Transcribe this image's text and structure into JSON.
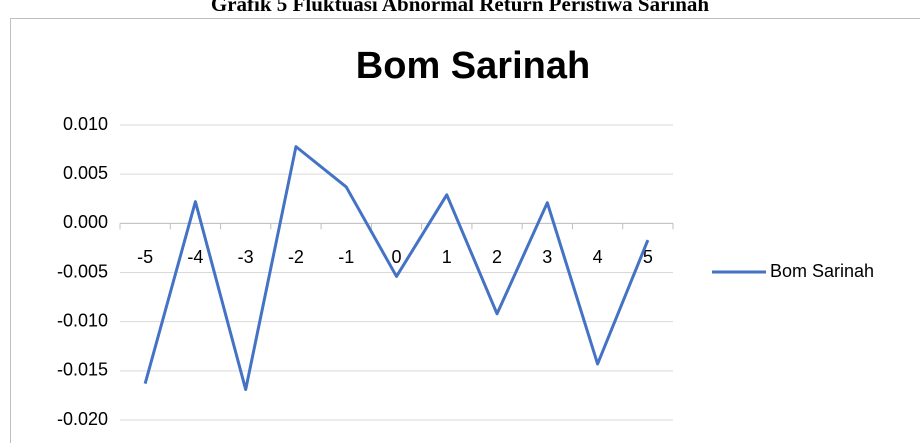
{
  "caption": "Grafik 5 Fluktuasi Abnormal Return Peristiwa Sarinah",
  "chart_data": {
    "type": "line",
    "title": "Bom Sarinah",
    "categories": [
      "-5",
      "-4",
      "-3",
      "-2",
      "-1",
      "0",
      "1",
      "2",
      "3",
      "4",
      "5"
    ],
    "series": [
      {
        "name": "Bom Sarinah",
        "color": "#4472c4",
        "values": [
          -0.0163,
          0.0022,
          -0.0169,
          0.0078,
          0.0037,
          -0.0054,
          0.0029,
          -0.0092,
          0.0021,
          -0.0143,
          -0.0017
        ]
      }
    ],
    "ylim": [
      -0.02,
      0.01
    ],
    "yticks": [
      {
        "value": -0.02,
        "label": "-0.020"
      },
      {
        "value": -0.015,
        "label": "-0.015"
      },
      {
        "value": -0.01,
        "label": "-0.010"
      },
      {
        "value": -0.005,
        "label": "-0.005"
      },
      {
        "value": 0,
        "label": "0.000"
      },
      {
        "value": 0.005,
        "label": "0.005"
      },
      {
        "value": 0.01,
        "label": "0.010"
      }
    ],
    "grid": true,
    "legend": "right"
  }
}
